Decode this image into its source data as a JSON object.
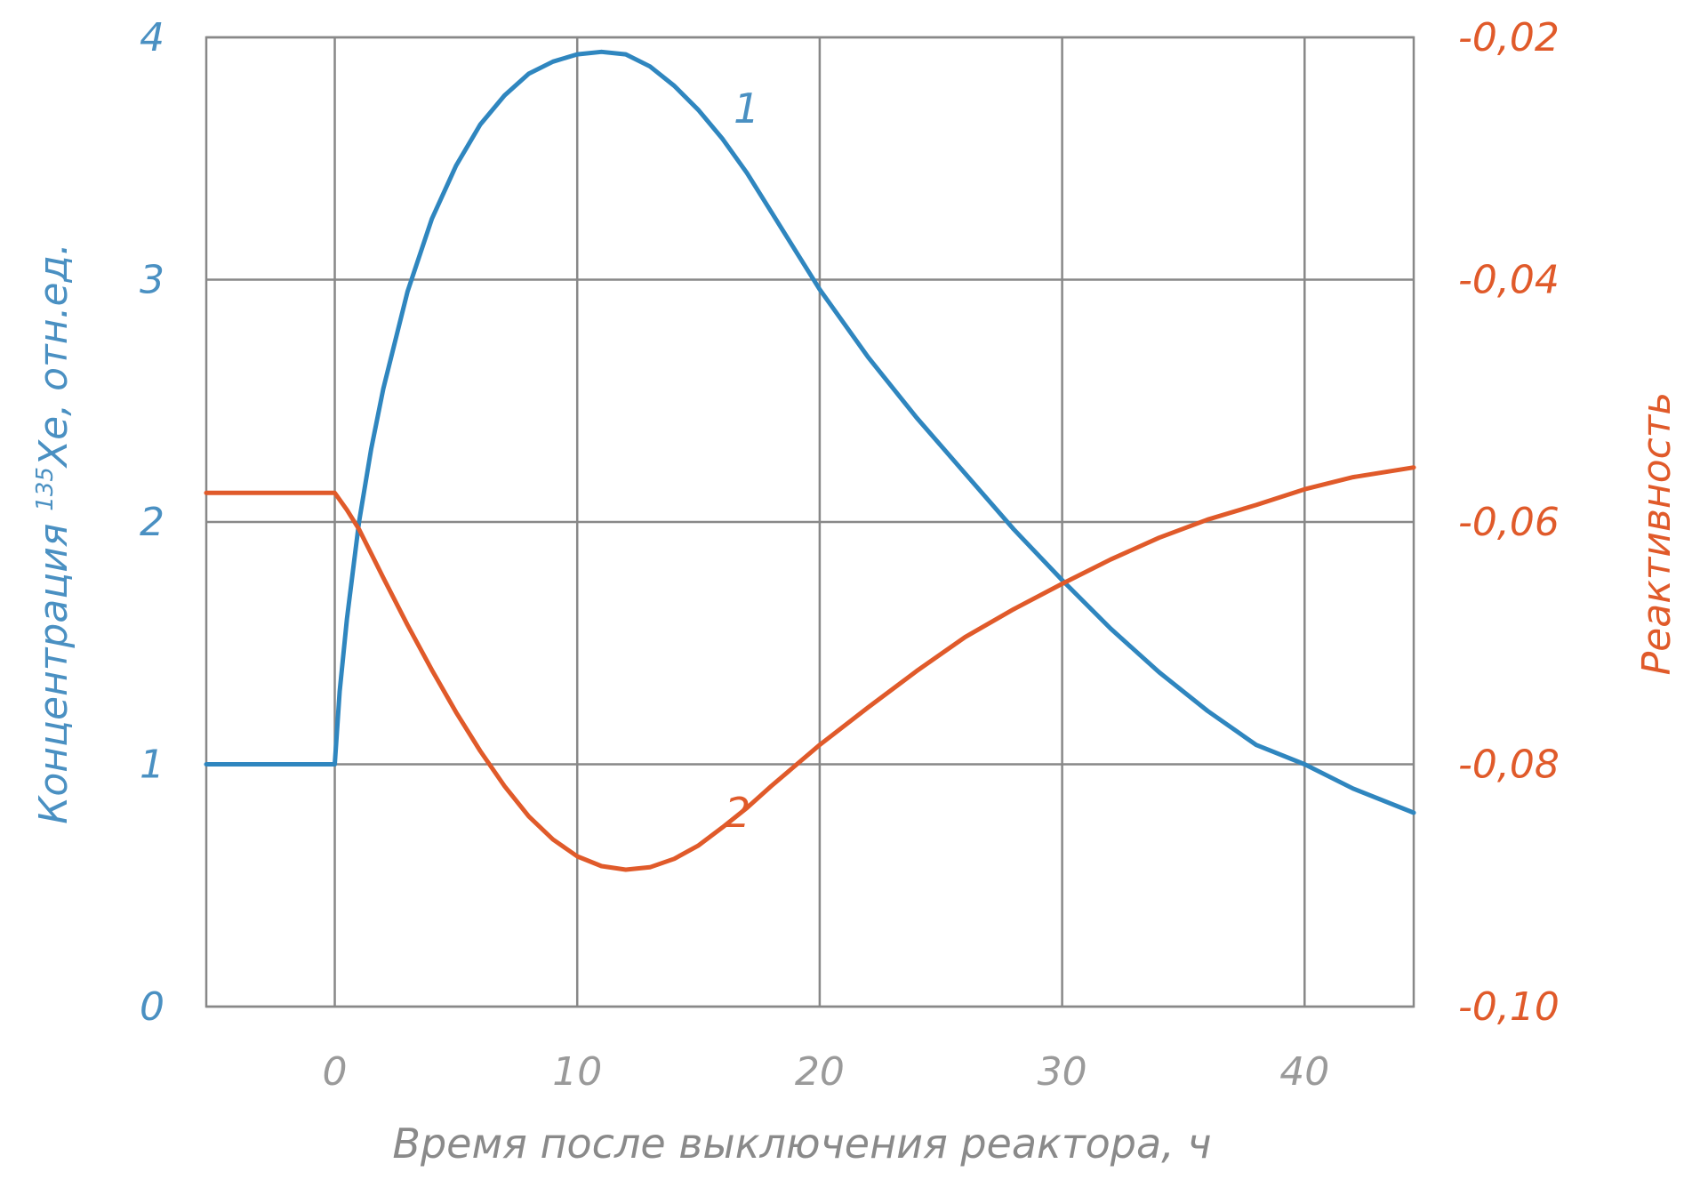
{
  "chart_data": {
    "type": "line",
    "xlabel": "Время после выключения реактора, ч",
    "ylabel_left": {
      "prefix": "Концентрация ",
      "superscript": "135",
      "suffix": "Xe, отн.ед."
    },
    "ylabel_right": "Реактивность",
    "xlim": [
      -5.3,
      44.5
    ],
    "ylim_left": [
      0,
      4
    ],
    "ylim_right": [
      -0.1,
      -0.02
    ],
    "x_ticks": [
      "0",
      "10",
      "20",
      "30",
      "40"
    ],
    "y_ticks_left": [
      "0",
      "1",
      "2",
      "3",
      "4"
    ],
    "y_ticks_right": [
      "-0,10",
      "-0,08",
      "-0,06",
      "-0,04",
      "-0,02"
    ],
    "grid": true,
    "colors": {
      "series_1": "#2f86bf",
      "series_2": "#e05a2a",
      "grid": "#888888",
      "left_axis_text": "#4a90c2",
      "right_axis_text": "#e05a2a",
      "x_axis_text": "#9a9a9a"
    },
    "series": [
      {
        "label": "1",
        "axis": "left",
        "points": [
          [
            -5.3,
            1.0
          ],
          [
            -0.1,
            1.0
          ],
          [
            0,
            1.0
          ],
          [
            0.2,
            1.3
          ],
          [
            0.5,
            1.6
          ],
          [
            1,
            2.0
          ],
          [
            1.5,
            2.3
          ],
          [
            2,
            2.55
          ],
          [
            3,
            2.95
          ],
          [
            4,
            3.25
          ],
          [
            5,
            3.47
          ],
          [
            6,
            3.64
          ],
          [
            7,
            3.76
          ],
          [
            8,
            3.85
          ],
          [
            9,
            3.9
          ],
          [
            10,
            3.93
          ],
          [
            11,
            3.94
          ],
          [
            12,
            3.93
          ],
          [
            13,
            3.88
          ],
          [
            14,
            3.8
          ],
          [
            15,
            3.7
          ],
          [
            16,
            3.58
          ],
          [
            17,
            3.44
          ],
          [
            18,
            3.28
          ],
          [
            19,
            3.12
          ],
          [
            20,
            2.96
          ],
          [
            22,
            2.68
          ],
          [
            24,
            2.43
          ],
          [
            26,
            2.2
          ],
          [
            28,
            1.97
          ],
          [
            30,
            1.76
          ],
          [
            32,
            1.56
          ],
          [
            34,
            1.38
          ],
          [
            36,
            1.22
          ],
          [
            38,
            1.08
          ],
          [
            40,
            1.0
          ],
          [
            42,
            0.9
          ],
          [
            44.5,
            0.8
          ]
        ]
      },
      {
        "label": "2",
        "axis": "right",
        "points": [
          [
            -5.3,
            -0.0576
          ],
          [
            -0.3,
            -0.0576
          ],
          [
            0,
            -0.0576
          ],
          [
            0.5,
            -0.059
          ],
          [
            1,
            -0.0606
          ],
          [
            2,
            -0.0646
          ],
          [
            3,
            -0.0685
          ],
          [
            4,
            -0.0722
          ],
          [
            5,
            -0.0757
          ],
          [
            6,
            -0.0789
          ],
          [
            7,
            -0.0818
          ],
          [
            8,
            -0.0843
          ],
          [
            9,
            -0.0862
          ],
          [
            10,
            -0.0876
          ],
          [
            11,
            -0.0884
          ],
          [
            12,
            -0.0887
          ],
          [
            13,
            -0.0885
          ],
          [
            14,
            -0.0878
          ],
          [
            15,
            -0.0867
          ],
          [
            16,
            -0.0852
          ],
          [
            17,
            -0.0836
          ],
          [
            18,
            -0.0818
          ],
          [
            19,
            -0.0801
          ],
          [
            20,
            -0.0784
          ],
          [
            22,
            -0.0753
          ],
          [
            24,
            -0.0723
          ],
          [
            26,
            -0.0695
          ],
          [
            28,
            -0.0672
          ],
          [
            30,
            -0.0651
          ],
          [
            32,
            -0.0631
          ],
          [
            34,
            -0.0613
          ],
          [
            36,
            -0.0598
          ],
          [
            38,
            -0.0586
          ],
          [
            40,
            -0.0573
          ],
          [
            42,
            -0.0563
          ],
          [
            44.5,
            -0.0555
          ]
        ]
      }
    ]
  }
}
